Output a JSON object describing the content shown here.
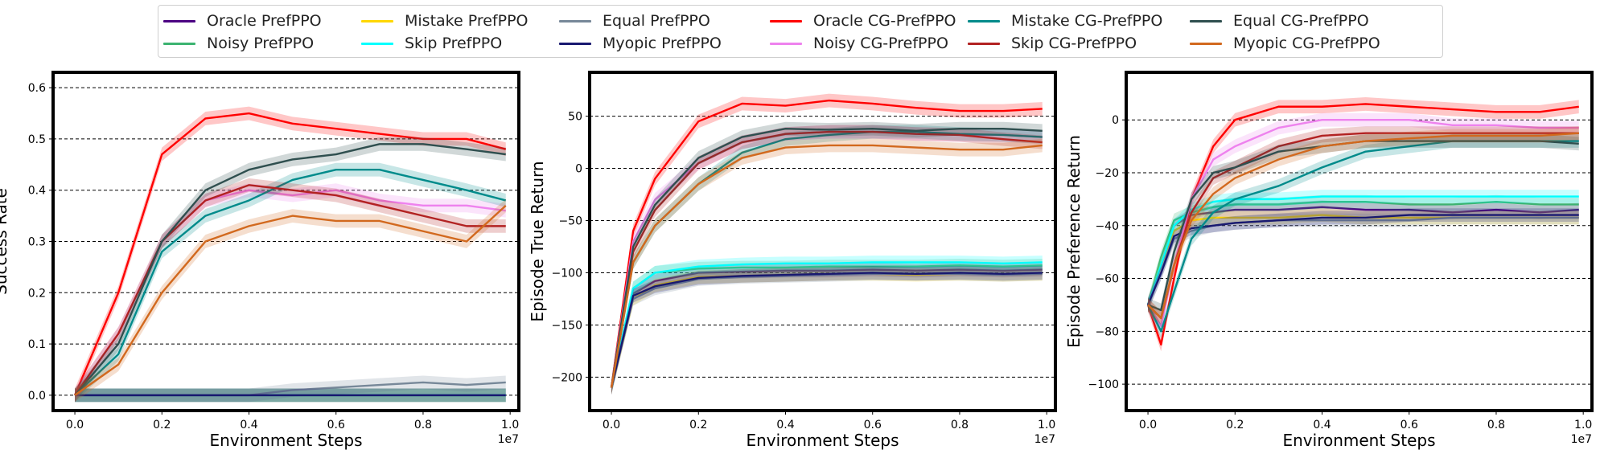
{
  "legend": [
    {
      "name": "Oracle PrefPPO",
      "color": "#4b0082"
    },
    {
      "name": "Noisy PrefPPO",
      "color": "#3cb371"
    },
    {
      "name": "Mistake PrefPPO",
      "color": "#ffd700"
    },
    {
      "name": "Skip PrefPPO",
      "color": "#00ffff"
    },
    {
      "name": "Equal PrefPPO",
      "color": "#778899"
    },
    {
      "name": "Myopic PrefPPO",
      "color": "#191970"
    },
    {
      "name": "Oracle CG-PrefPPO",
      "color": "#ff0000"
    },
    {
      "name": "Noisy CG-PrefPPO",
      "color": "#ee82ee"
    },
    {
      "name": "Mistake CG-PrefPPO",
      "color": "#008b8b"
    },
    {
      "name": "Skip CG-PrefPPO",
      "color": "#b22222"
    },
    {
      "name": "Equal CG-PrefPPO",
      "color": "#2f4f4f"
    },
    {
      "name": "Myopic CG-PrefPPO",
      "color": "#d2691e"
    }
  ],
  "chart_data": [
    {
      "type": "line",
      "title": "",
      "xlabel": "Environment Steps",
      "ylabel": "Success Rate",
      "x_offset_label": "1e7",
      "xlim": [
        -0.05,
        1.02
      ],
      "ylim": [
        -0.03,
        0.63
      ],
      "xticks": [
        0.0,
        0.2,
        0.4,
        0.6,
        0.8,
        1.0
      ],
      "xtick_labels": [
        "0.0",
        "0.2",
        "0.4",
        "0.6",
        "0.8",
        "1.0"
      ],
      "yticks": [
        0.0,
        0.1,
        0.2,
        0.3,
        0.4,
        0.5,
        0.6
      ],
      "ytick_labels": [
        "0.0",
        "0.1",
        "0.2",
        "0.3",
        "0.4",
        "0.5",
        "0.6"
      ],
      "grid": "horizontal-dashed",
      "x": [
        0.0,
        0.1,
        0.2,
        0.3,
        0.4,
        0.5,
        0.6,
        0.7,
        0.8,
        0.9,
        0.99
      ],
      "series": [
        {
          "name": "Oracle PrefPPO",
          "values": [
            0.0,
            0.0,
            0.0,
            0.0,
            0.0,
            0.0,
            0.0,
            0.0,
            0.0,
            0.0,
            0.0
          ]
        },
        {
          "name": "Noisy PrefPPO",
          "values": [
            0.0,
            0.0,
            0.0,
            0.0,
            0.0,
            0.0,
            0.0,
            0.0,
            0.0,
            0.0,
            0.0
          ]
        },
        {
          "name": "Mistake PrefPPO",
          "values": [
            0.0,
            0.0,
            0.0,
            0.0,
            0.0,
            0.0,
            0.0,
            0.0,
            0.0,
            0.0,
            0.0
          ]
        },
        {
          "name": "Skip PrefPPO",
          "values": [
            0.0,
            0.0,
            0.0,
            0.0,
            0.0,
            0.0,
            0.0,
            0.0,
            0.0,
            0.0,
            0.0
          ]
        },
        {
          "name": "Equal PrefPPO",
          "values": [
            0.0,
            0.0,
            0.0,
            0.0,
            0.0,
            0.01,
            0.015,
            0.02,
            0.025,
            0.02,
            0.025
          ]
        },
        {
          "name": "Myopic PrefPPO",
          "values": [
            0.0,
            0.0,
            0.0,
            0.0,
            0.0,
            0.0,
            0.0,
            0.0,
            0.0,
            0.0,
            0.0
          ]
        },
        {
          "name": "Oracle CG-PrefPPO",
          "values": [
            0.0,
            0.2,
            0.47,
            0.54,
            0.55,
            0.53,
            0.52,
            0.51,
            0.5,
            0.5,
            0.48
          ]
        },
        {
          "name": "Noisy CG-PrefPPO",
          "values": [
            0.0,
            0.12,
            0.3,
            0.38,
            0.4,
            0.39,
            0.4,
            0.38,
            0.37,
            0.37,
            0.36
          ]
        },
        {
          "name": "Mistake CG-PrefPPO",
          "values": [
            0.0,
            0.08,
            0.28,
            0.35,
            0.38,
            0.42,
            0.44,
            0.44,
            0.42,
            0.4,
            0.38
          ]
        },
        {
          "name": "Skip CG-PrefPPO",
          "values": [
            0.0,
            0.12,
            0.3,
            0.38,
            0.41,
            0.4,
            0.39,
            0.37,
            0.35,
            0.33,
            0.33
          ]
        },
        {
          "name": "Equal CG-PrefPPO",
          "values": [
            0.0,
            0.1,
            0.3,
            0.4,
            0.44,
            0.46,
            0.47,
            0.49,
            0.49,
            0.48,
            0.47
          ]
        },
        {
          "name": "Myopic CG-PrefPPO",
          "values": [
            0.0,
            0.06,
            0.2,
            0.3,
            0.33,
            0.35,
            0.34,
            0.34,
            0.32,
            0.3,
            0.37
          ]
        }
      ]
    },
    {
      "type": "line",
      "title": "",
      "xlabel": "Environment Steps",
      "ylabel": "Episode True Return",
      "x_offset_label": "1e7",
      "xlim": [
        -0.05,
        1.02
      ],
      "ylim": [
        -232,
        92
      ],
      "xticks": [
        0.0,
        0.2,
        0.4,
        0.6,
        0.8,
        1.0
      ],
      "xtick_labels": [
        "0.0",
        "0.2",
        "0.4",
        "0.6",
        "0.8",
        "1.0"
      ],
      "yticks": [
        -200,
        -150,
        -100,
        -50,
        0,
        50
      ],
      "ytick_labels": [
        "−200",
        "−150",
        "−100",
        "−50",
        "0",
        "50"
      ],
      "grid": "horizontal-dashed",
      "x": [
        0.0,
        0.05,
        0.1,
        0.2,
        0.3,
        0.4,
        0.5,
        0.6,
        0.7,
        0.8,
        0.9,
        0.99
      ],
      "series": [
        {
          "name": "Oracle PrefPPO",
          "values": [
            -210,
            -120,
            -108,
            -100,
            -99,
            -98,
            -98,
            -97,
            -98,
            -97,
            -98,
            -97
          ]
        },
        {
          "name": "Noisy PrefPPO",
          "values": [
            -210,
            -115,
            -100,
            -96,
            -95,
            -95,
            -94,
            -94,
            -94,
            -93,
            -94,
            -93
          ]
        },
        {
          "name": "Mistake PrefPPO",
          "values": [
            -210,
            -125,
            -112,
            -104,
            -103,
            -102,
            -101,
            -101,
            -102,
            -101,
            -102,
            -101
          ]
        },
        {
          "name": "Skip PrefPPO",
          "values": [
            -210,
            -115,
            -100,
            -94,
            -92,
            -91,
            -91,
            -90,
            -90,
            -90,
            -91,
            -90
          ]
        },
        {
          "name": "Equal PrefPPO",
          "values": [
            -210,
            -125,
            -115,
            -106,
            -104,
            -103,
            -102,
            -101,
            -101,
            -101,
            -102,
            -101
          ]
        },
        {
          "name": "Myopic PrefPPO",
          "values": [
            -210,
            -122,
            -113,
            -105,
            -103,
            -102,
            -101,
            -100,
            -101,
            -100,
            -101,
            -100
          ]
        },
        {
          "name": "Oracle CG-PrefPPO",
          "values": [
            -210,
            -60,
            -10,
            45,
            62,
            60,
            65,
            62,
            58,
            55,
            55,
            57
          ]
        },
        {
          "name": "Noisy CG-PrefPPO",
          "values": [
            -210,
            -70,
            -30,
            5,
            25,
            33,
            35,
            35,
            33,
            32,
            32,
            30
          ]
        },
        {
          "name": "Mistake CG-PrefPPO",
          "values": [
            -210,
            -90,
            -55,
            -15,
            15,
            28,
            32,
            35,
            35,
            33,
            32,
            30
          ]
        },
        {
          "name": "Skip CG-PrefPPO",
          "values": [
            -210,
            -80,
            -40,
            5,
            25,
            33,
            35,
            35,
            33,
            32,
            28,
            25
          ]
        },
        {
          "name": "Equal CG-PrefPPO",
          "values": [
            -210,
            -75,
            -35,
            10,
            30,
            38,
            37,
            38,
            36,
            38,
            38,
            36
          ]
        },
        {
          "name": "Myopic CG-PrefPPO",
          "values": [
            -210,
            -90,
            -55,
            -15,
            10,
            20,
            22,
            22,
            20,
            18,
            18,
            22
          ]
        }
      ]
    },
    {
      "type": "line",
      "title": "",
      "xlabel": "Environment Steps",
      "ylabel": "Episode Preference Return",
      "x_offset_label": "1e7",
      "xlim": [
        -0.05,
        1.02
      ],
      "ylim": [
        -110,
        18
      ],
      "xticks": [
        0.0,
        0.2,
        0.4,
        0.6,
        0.8,
        1.0
      ],
      "xtick_labels": [
        "0.0",
        "0.2",
        "0.4",
        "0.6",
        "0.8",
        "1.0"
      ],
      "yticks": [
        -100,
        -80,
        -60,
        -40,
        -20,
        0
      ],
      "ytick_labels": [
        "−100",
        "−80",
        "−60",
        "−40",
        "−20",
        "0"
      ],
      "grid": "horizontal-dashed",
      "x": [
        0.0,
        0.03,
        0.06,
        0.1,
        0.15,
        0.2,
        0.3,
        0.4,
        0.5,
        0.6,
        0.7,
        0.8,
        0.9,
        0.99
      ],
      "series": [
        {
          "name": "Oracle PrefPPO",
          "values": [
            -70,
            -55,
            -40,
            -36,
            -35,
            -34,
            -34,
            -33,
            -34,
            -34,
            -35,
            -34,
            -35,
            -34
          ]
        },
        {
          "name": "Noisy PrefPPO",
          "values": [
            -70,
            -52,
            -38,
            -35,
            -33,
            -32,
            -32,
            -31,
            -31,
            -32,
            -32,
            -31,
            -32,
            -32
          ]
        },
        {
          "name": "Mistake PrefPPO",
          "values": [
            -70,
            -55,
            -42,
            -38,
            -37,
            -37,
            -37,
            -36,
            -37,
            -37,
            -37,
            -37,
            -37,
            -37
          ]
        },
        {
          "name": "Skip PrefPPO",
          "values": [
            -70,
            -55,
            -40,
            -34,
            -31,
            -30,
            -30,
            -29,
            -29,
            -29,
            -29,
            -29,
            -29,
            -29
          ]
        },
        {
          "name": "Equal PrefPPO",
          "values": [
            -70,
            -58,
            -45,
            -42,
            -40,
            -39,
            -38,
            -38,
            -38,
            -38,
            -37,
            -37,
            -37,
            -37
          ]
        },
        {
          "name": "Myopic PrefPPO",
          "values": [
            -70,
            -58,
            -44,
            -41,
            -40,
            -39,
            -38,
            -37,
            -37,
            -36,
            -36,
            -36,
            -36,
            -36
          ]
        },
        {
          "name": "Oracle CG-PrefPPO",
          "values": [
            -70,
            -85,
            -60,
            -30,
            -10,
            0,
            5,
            5,
            6,
            5,
            4,
            3,
            3,
            5
          ]
        },
        {
          "name": "Noisy CG-PrefPPO",
          "values": [
            -70,
            -78,
            -55,
            -30,
            -15,
            -10,
            -3,
            0,
            0,
            0,
            -2,
            -2,
            -3,
            -3
          ]
        },
        {
          "name": "Mistake CG-PrefPPO",
          "values": [
            -70,
            -80,
            -65,
            -45,
            -35,
            -30,
            -25,
            -18,
            -12,
            -10,
            -8,
            -8,
            -8,
            -8
          ]
        },
        {
          "name": "Skip CG-PrefPPO",
          "values": [
            -70,
            -75,
            -55,
            -35,
            -22,
            -18,
            -10,
            -6,
            -5,
            -5,
            -5,
            -5,
            -5,
            -5
          ]
        },
        {
          "name": "Equal CG-PrefPPO",
          "values": [
            -70,
            -72,
            -50,
            -30,
            -20,
            -18,
            -12,
            -10,
            -8,
            -8,
            -8,
            -8,
            -8,
            -9
          ]
        },
        {
          "name": "Myopic CG-PrefPPO",
          "values": [
            -70,
            -75,
            -55,
            -38,
            -28,
            -22,
            -15,
            -10,
            -8,
            -7,
            -6,
            -6,
            -6,
            -5
          ]
        }
      ]
    }
  ]
}
